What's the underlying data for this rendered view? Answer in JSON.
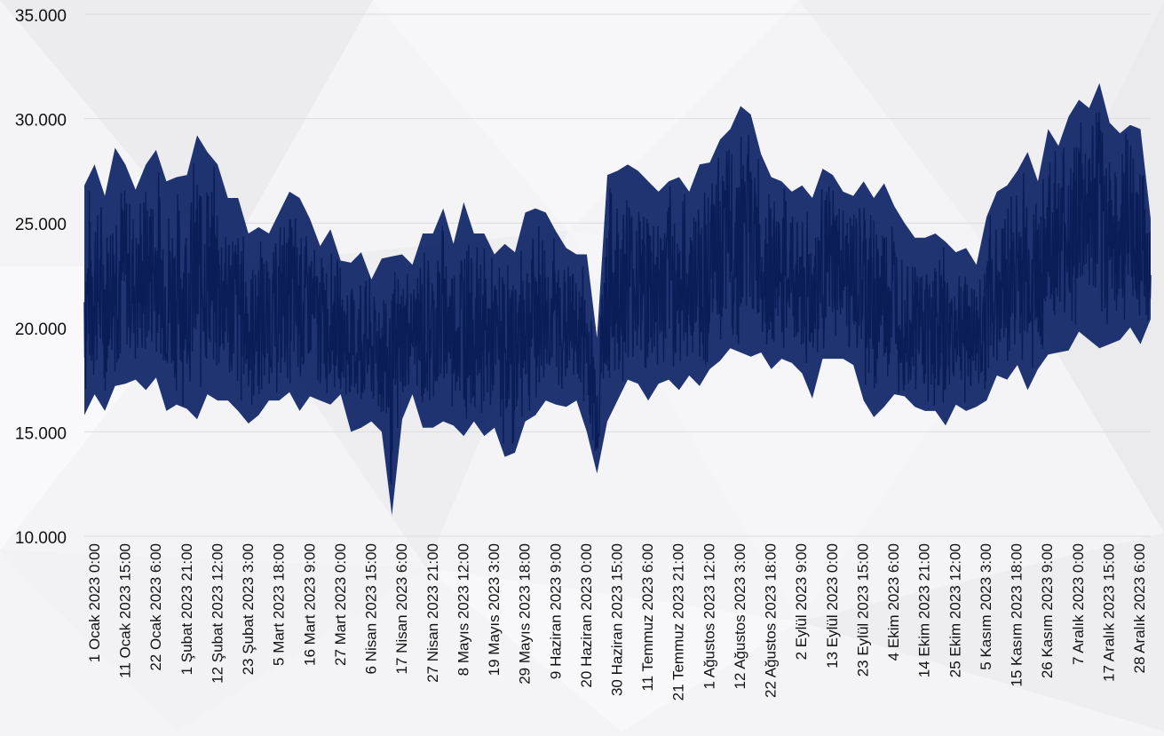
{
  "chart_data": {
    "type": "line",
    "title": "",
    "xlabel": "",
    "ylabel": "",
    "ylim": [
      10000,
      35000
    ],
    "y_ticks": [
      "10.000",
      "15.000",
      "20.000",
      "25.000",
      "30.000",
      "35.000"
    ],
    "y_tick_values": [
      10000,
      15000,
      20000,
      25000,
      30000,
      35000
    ],
    "grid": true,
    "legend": "none",
    "x_tick_labels": [
      "1 Ocak 2023 0:00",
      "11 Ocak 2023 15:00",
      "22 Ocak 2023 6:00",
      "1 Şubat 2023 21:00",
      "12 Şubat 2023 12:00",
      "23 Şubat 2023 3:00",
      "5 Mart 2023 18:00",
      "16 Mart 2023 9:00",
      "27 Mart 2023 0:00",
      "6 Nisan 2023 15:00",
      "17 Nisan 2023 6:00",
      "27 Nisan 2023 21:00",
      "8 Mayıs 2023 12:00",
      "19 Mayıs 2023 3:00",
      "29 Mayıs 2023 18:00",
      "9 Haziran 2023 9:00",
      "20 Haziran 2023 0:00",
      "30 Haziran 2023 15:00",
      "11 Temmuz 2023 6:00",
      "21 Temmuz 2023 21:00",
      "1 Ağustos 2023 12:00",
      "12 Ağustos 2023 3:00",
      "22 Ağustos 2023 18:00",
      "2 Eylül 2023 9:00",
      "13 Eylül 2023 0:00",
      "23 Eylül 2023 15:00",
      "4 Ekim 2023 6:00",
      "14 Ekim 2023 21:00",
      "25 Ekim 2023 12:00",
      "5 Kasım 2023 3:00",
      "15 Kasım 2023 18:00",
      "26 Kasım 2023 9:00",
      "7 Aralık 2023 0:00",
      "17 Aralık 2023 15:00",
      "28 Aralık 2023 6:00"
    ],
    "series": [
      {
        "color": "#0d2366",
        "resolution": "hourly",
        "envelope_interval": "3.5 days",
        "envelope": [
          {
            "x": "1 Ocak 2023 0:00",
            "min": 15800,
            "max": 26800
          },
          {
            "x": "4 Ocak 2023 12:00",
            "min": 16800,
            "max": 27800
          },
          {
            "x": "8 Ocak 2023 0:00",
            "min": 16000,
            "max": 26300
          },
          {
            "x": "11 Ocak 2023 12:00",
            "min": 17200,
            "max": 28600
          },
          {
            "x": "15 Ocak 2023 0:00",
            "min": 17300,
            "max": 27800
          },
          {
            "x": "18 Ocak 2023 12:00",
            "min": 17500,
            "max": 26600
          },
          {
            "x": "22 Ocak 2023 0:00",
            "min": 17000,
            "max": 27800
          },
          {
            "x": "25 Ocak 2023 12:00",
            "min": 17600,
            "max": 28500
          },
          {
            "x": "29 Ocak 2023 0:00",
            "min": 16000,
            "max": 27000
          },
          {
            "x": "1 Şubat 2023 12:00",
            "min": 16300,
            "max": 27200
          },
          {
            "x": "5 Şubat 2023 0:00",
            "min": 16100,
            "max": 27300
          },
          {
            "x": "8 Şubat 2023 12:00",
            "min": 15600,
            "max": 29200
          },
          {
            "x": "12 Şubat 2023 0:00",
            "min": 16800,
            "max": 28400
          },
          {
            "x": "15 Şubat 2023 12:00",
            "min": 16500,
            "max": 27800
          },
          {
            "x": "19 Şubat 2023 0:00",
            "min": 16500,
            "max": 26200
          },
          {
            "x": "22 Şubat 2023 12:00",
            "min": 16000,
            "max": 26200
          },
          {
            "x": "26 Şubat 2023 0:00",
            "min": 15400,
            "max": 24500
          },
          {
            "x": "1 Mart 2023 12:00",
            "min": 15800,
            "max": 24800
          },
          {
            "x": "5 Mart 2023 0:00",
            "min": 16500,
            "max": 24500
          },
          {
            "x": "8 Mart 2023 12:00",
            "min": 16500,
            "max": 25500
          },
          {
            "x": "12 Mart 2023 0:00",
            "min": 16900,
            "max": 26500
          },
          {
            "x": "15 Mart 2023 12:00",
            "min": 16000,
            "max": 26200
          },
          {
            "x": "19 Mart 2023 0:00",
            "min": 16700,
            "max": 25200
          },
          {
            "x": "22 Mart 2023 12:00",
            "min": 16500,
            "max": 23900
          },
          {
            "x": "26 Mart 2023 0:00",
            "min": 16300,
            "max": 24700
          },
          {
            "x": "29 Mart 2023 12:00",
            "min": 16800,
            "max": 23200
          },
          {
            "x": "2 Nisan 2023 0:00",
            "min": 15000,
            "max": 23100
          },
          {
            "x": "5 Nisan 2023 12:00",
            "min": 15200,
            "max": 23600
          },
          {
            "x": "9 Nisan 2023 0:00",
            "min": 15500,
            "max": 22300
          },
          {
            "x": "12 Nisan 2023 12:00",
            "min": 15000,
            "max": 23300
          },
          {
            "x": "16 Nisan 2023 0:00",
            "min": 11000,
            "max": 23400
          },
          {
            "x": "19 Nisan 2023 12:00",
            "min": 15600,
            "max": 23500
          },
          {
            "x": "23 Nisan 2023 0:00",
            "min": 16800,
            "max": 23000
          },
          {
            "x": "26 Nisan 2023 12:00",
            "min": 15200,
            "max": 24500
          },
          {
            "x": "30 Nisan 2023 0:00",
            "min": 15200,
            "max": 24500
          },
          {
            "x": "3 Mayıs 2023 12:00",
            "min": 15500,
            "max": 25700
          },
          {
            "x": "7 Mayıs 2023 0:00",
            "min": 15300,
            "max": 24000
          },
          {
            "x": "10 Mayıs 2023 12:00",
            "min": 14800,
            "max": 26000
          },
          {
            "x": "14 Mayıs 2023 0:00",
            "min": 15500,
            "max": 24500
          },
          {
            "x": "17 Mayıs 2023 12:00",
            "min": 14800,
            "max": 24500
          },
          {
            "x": "21 Mayıs 2023 0:00",
            "min": 15200,
            "max": 23500
          },
          {
            "x": "24 Mayıs 2023 12:00",
            "min": 13800,
            "max": 24000
          },
          {
            "x": "28 Mayıs 2023 0:00",
            "min": 14000,
            "max": 23600
          },
          {
            "x": "31 Mayıs 2023 12:00",
            "min": 15500,
            "max": 25500
          },
          {
            "x": "4 Haziran 2023 0:00",
            "min": 15800,
            "max": 25700
          },
          {
            "x": "7 Haziran 2023 12:00",
            "min": 16500,
            "max": 25500
          },
          {
            "x": "11 Haziran 2023 0:00",
            "min": 16300,
            "max": 24600
          },
          {
            "x": "14 Haziran 2023 12:00",
            "min": 16200,
            "max": 23800
          },
          {
            "x": "18 Haziran 2023 0:00",
            "min": 16500,
            "max": 23500
          },
          {
            "x": "21 Haziran 2023 12:00",
            "min": 15000,
            "max": 23500
          },
          {
            "x": "25 Haziran 2023 0:00",
            "min": 13000,
            "max": 19500
          },
          {
            "x": "28 Haziran 2023 12:00",
            "min": 15500,
            "max": 27300
          },
          {
            "x": "2 Temmuz 2023 0:00",
            "min": 16500,
            "max": 27500
          },
          {
            "x": "5 Temmuz 2023 12:00",
            "min": 17500,
            "max": 27800
          },
          {
            "x": "9 Temmuz 2023 0:00",
            "min": 17300,
            "max": 27500
          },
          {
            "x": "12 Temmuz 2023 12:00",
            "min": 16500,
            "max": 27000
          },
          {
            "x": "16 Temmuz 2023 0:00",
            "min": 17300,
            "max": 26500
          },
          {
            "x": "19 Temmuz 2023 12:00",
            "min": 17500,
            "max": 27000
          },
          {
            "x": "23 Temmuz 2023 0:00",
            "min": 17000,
            "max": 27200
          },
          {
            "x": "26 Temmuz 2023 12:00",
            "min": 17700,
            "max": 26500
          },
          {
            "x": "30 Temmuz 2023 0:00",
            "min": 17200,
            "max": 27800
          },
          {
            "x": "2 Ağustos 2023 12:00",
            "min": 18000,
            "max": 27900
          },
          {
            "x": "6 Ağustos 2023 0:00",
            "min": 18400,
            "max": 29000
          },
          {
            "x": "9 Ağustos 2023 12:00",
            "min": 19000,
            "max": 29500
          },
          {
            "x": "13 Ağustos 2023 0:00",
            "min": 18800,
            "max": 30600
          },
          {
            "x": "16 Ağustos 2023 12:00",
            "min": 18600,
            "max": 30200
          },
          {
            "x": "20 Ağustos 2023 0:00",
            "min": 18800,
            "max": 28300
          },
          {
            "x": "23 Ağustos 2023 12:00",
            "min": 18000,
            "max": 27200
          },
          {
            "x": "27 Ağustos 2023 0:00",
            "min": 18500,
            "max": 27000
          },
          {
            "x": "30 Ağustos 2023 12:00",
            "min": 18300,
            "max": 26500
          },
          {
            "x": "3 Eylül 2023 0:00",
            "min": 17800,
            "max": 26800
          },
          {
            "x": "6 Eylül 2023 12:00",
            "min": 16600,
            "max": 26200
          },
          {
            "x": "10 Eylül 2023 0:00",
            "min": 18500,
            "max": 27600
          },
          {
            "x": "13 Eylül 2023 12:00",
            "min": 18500,
            "max": 27300
          },
          {
            "x": "17 Eylül 2023 0:00",
            "min": 18500,
            "max": 26500
          },
          {
            "x": "20 Eylül 2023 12:00",
            "min": 18200,
            "max": 26300
          },
          {
            "x": "24 Eylül 2023 0:00",
            "min": 16500,
            "max": 27000
          },
          {
            "x": "27 Eylül 2023 12:00",
            "min": 15700,
            "max": 26200
          },
          {
            "x": "1 Ekim 2023 0:00",
            "min": 16200,
            "max": 26900
          },
          {
            "x": "4 Ekim 2023 12:00",
            "min": 16800,
            "max": 25800
          },
          {
            "x": "8 Ekim 2023 0:00",
            "min": 16700,
            "max": 25000
          },
          {
            "x": "11 Ekim 2023 12:00",
            "min": 16200,
            "max": 24300
          },
          {
            "x": "15 Ekim 2023 0:00",
            "min": 16000,
            "max": 24300
          },
          {
            "x": "18 Ekim 2023 12:00",
            "min": 16000,
            "max": 24500
          },
          {
            "x": "22 Ekim 2023 0:00",
            "min": 15300,
            "max": 24100
          },
          {
            "x": "25 Ekim 2023 12:00",
            "min": 16300,
            "max": 23600
          },
          {
            "x": "29 Ekim 2023 0:00",
            "min": 16000,
            "max": 23800
          },
          {
            "x": "1 Kasım 2023 12:00",
            "min": 16200,
            "max": 23000
          },
          {
            "x": "5 Kasım 2023 0:00",
            "min": 16500,
            "max": 25300
          },
          {
            "x": "8 Kasım 2023 12:00",
            "min": 17700,
            "max": 26500
          },
          {
            "x": "12 Kasım 2023 0:00",
            "min": 17500,
            "max": 26800
          },
          {
            "x": "15 Kasım 2023 12:00",
            "min": 18200,
            "max": 27500
          },
          {
            "x": "19 Kasım 2023 0:00",
            "min": 17000,
            "max": 28400
          },
          {
            "x": "22 Kasım 2023 12:00",
            "min": 18000,
            "max": 27000
          },
          {
            "x": "26 Kasım 2023 0:00",
            "min": 18700,
            "max": 29500
          },
          {
            "x": "29 Kasım 2023 12:00",
            "min": 18800,
            "max": 28700
          },
          {
            "x": "3 Aralık 2023 0:00",
            "min": 18900,
            "max": 30100
          },
          {
            "x": "6 Aralık 2023 12:00",
            "min": 19800,
            "max": 30900
          },
          {
            "x": "10 Aralık 2023 0:00",
            "min": 19400,
            "max": 30500
          },
          {
            "x": "13 Aralık 2023 12:00",
            "min": 19000,
            "max": 31700
          },
          {
            "x": "17 Aralık 2023 0:00",
            "min": 19200,
            "max": 29800
          },
          {
            "x": "20 Aralık 2023 12:00",
            "min": 19400,
            "max": 29300
          },
          {
            "x": "24 Aralık 2023 0:00",
            "min": 20000,
            "max": 29700
          },
          {
            "x": "27 Aralık 2023 12:00",
            "min": 19200,
            "max": 29500
          },
          {
            "x": "31 Aralık 2023 23:00",
            "min": 20400,
            "max": 25200
          }
        ]
      }
    ]
  }
}
